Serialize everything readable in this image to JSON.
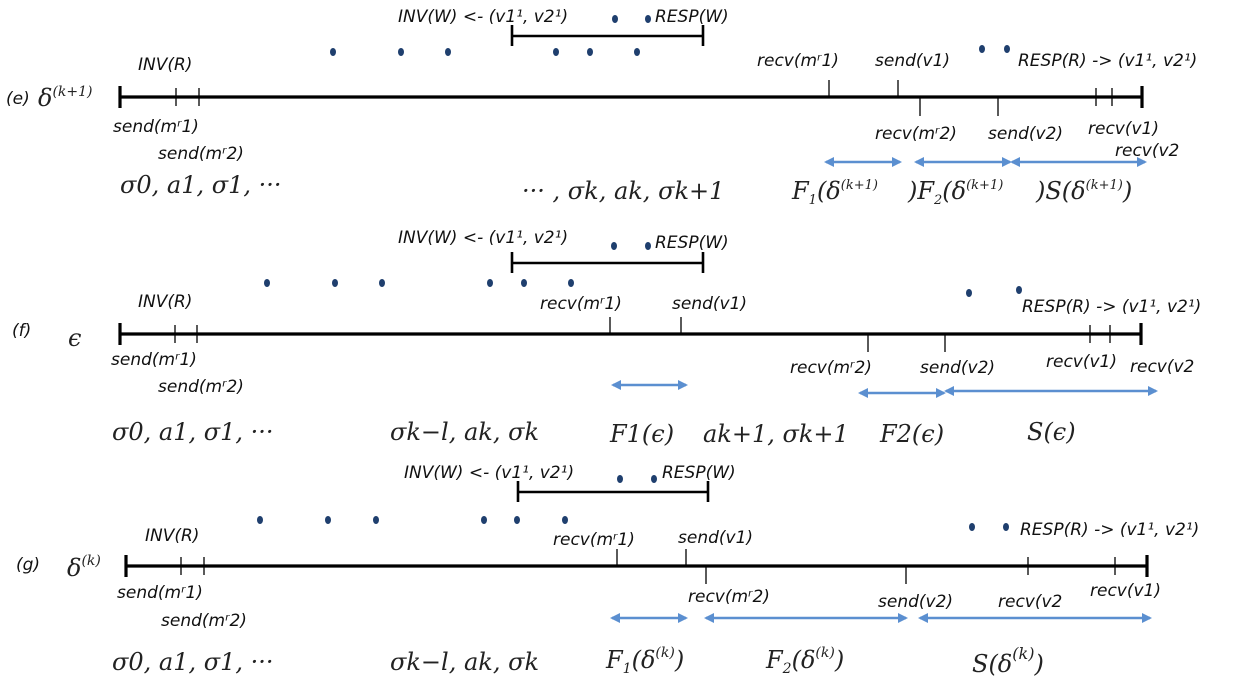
{
  "colors": {
    "dot": "#1f3f6e",
    "arrow": "#5b8fd0",
    "line": "#000000"
  },
  "rows": [
    {
      "id": "e",
      "tag": "(e)",
      "exec_symbol": "δ(k+1)",
      "write_label": "INV(W) <- (v1¹, v2¹)",
      "resp_w": "RESP(W)",
      "inv_r": "INV(R)",
      "send_m1": "send(mʳ1)",
      "send_m2": "send(mʳ2)",
      "recv_m1": "recv(mʳ1)",
      "send_v1": "send(v1)",
      "recv_m2": "recv(mʳ2)",
      "send_v2": "send(v2)",
      "recv_v1": "recv(v1)",
      "recv_v2": "recv(v2",
      "resp_r": "RESP(R) -> (v1¹, v2¹)",
      "seq_left": "σ0, a1, σ1, ···",
      "seq_mid": "··· , σk, ak, σk+1",
      "f1": "F1(δ(k+1))",
      "f2": "F2(δ(k+1))",
      "s": "S(δ(k+1))"
    },
    {
      "id": "f",
      "tag": "(f)",
      "exec_symbol": "ϵ",
      "write_label": "INV(W) <- (v1¹, v2¹)",
      "resp_w": "RESP(W)",
      "inv_r": "INV(R)",
      "send_m1": "send(mʳ1)",
      "send_m2": "send(mʳ2)",
      "recv_m1": "recv(mʳ1)",
      "send_v1": "send(v1)",
      "recv_m2": "recv(mʳ2)",
      "send_v2": "send(v2)",
      "recv_v1": "recv(v1)",
      "recv_v2": "recv(v2",
      "resp_r": "RESP(R) -> (v1¹, v2¹)",
      "seq_left": "σ0, a1, σ1, ···",
      "seq_mid": "σk−l, ak, σk",
      "f1": "F1(ϵ)",
      "seq_mid2": "ak+1, σk+1",
      "f2": "F2(ϵ)",
      "s": "S(ϵ)"
    },
    {
      "id": "g",
      "tag": "(g)",
      "exec_symbol": "δ(k)",
      "write_label": "INV(W) <- (v1¹, v2¹)",
      "resp_w": "RESP(W)",
      "inv_r": "INV(R)",
      "send_m1": "send(mʳ1)",
      "send_m2": "send(mʳ2)",
      "recv_m1": "recv(mʳ1)",
      "send_v1": "send(v1)",
      "recv_m2": "recv(mʳ2)",
      "send_v2": "send(v2)",
      "recv_v1": "recv(v1)",
      "recv_v2": "recv(v2",
      "resp_r": "RESP(R) -> (v1¹, v2¹)",
      "seq_left": "σ0, a1, σ1, ···",
      "seq_mid": "σk−l, ak, σk",
      "f1": "F1(δ(k))",
      "f2": "F2(δ(k))",
      "s": "S(δ(k))"
    }
  ]
}
